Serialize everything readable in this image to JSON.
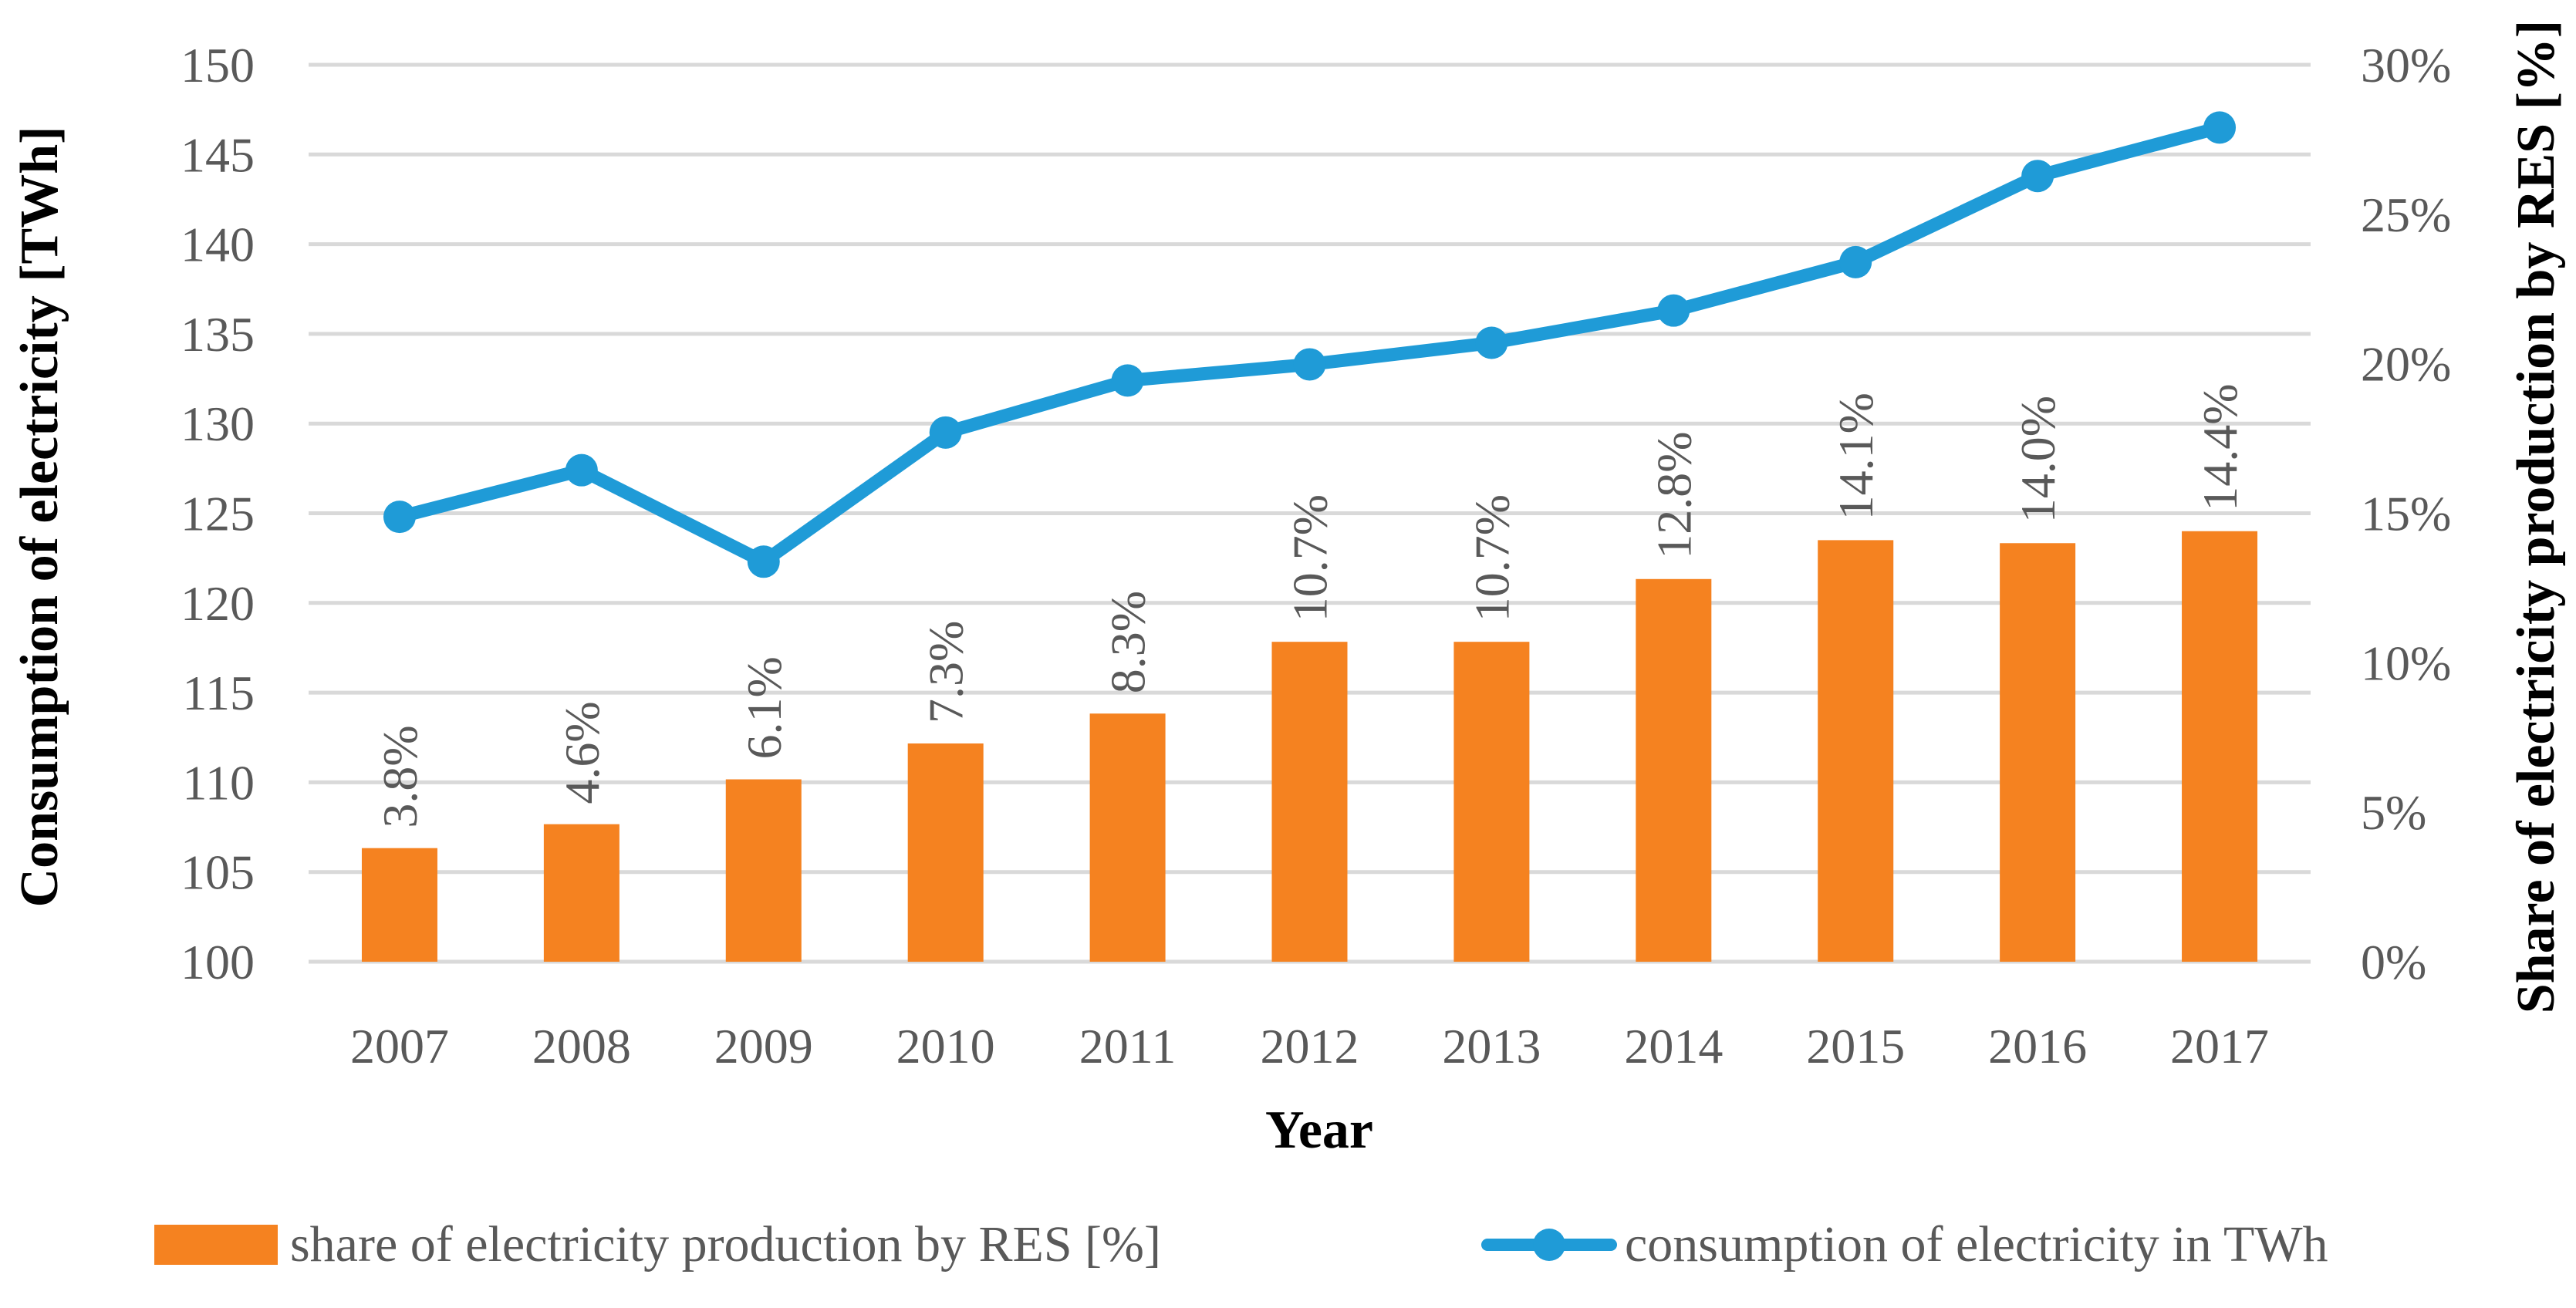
{
  "chart_data": {
    "type": "bar+line",
    "categories": [
      "2007",
      "2008",
      "2009",
      "2010",
      "2011",
      "2012",
      "2013",
      "2014",
      "2015",
      "2016",
      "2017"
    ],
    "series": [
      {
        "name": "share of electricity production by RES [%]",
        "type": "bar",
        "axis": "right",
        "values": [
          3.8,
          4.6,
          6.1,
          7.3,
          8.3,
          10.7,
          10.7,
          12.8,
          14.1,
          14.0,
          14.4
        ],
        "labels": [
          "3.8%",
          "4.6%",
          "6.1%",
          "7.3%",
          "8.3%",
          "10.7%",
          "10.7%",
          "12.8%",
          "14.1%",
          "14.0%",
          "14.4%"
        ],
        "color": "#F58220"
      },
      {
        "name": "consumption of electricity in TWh",
        "type": "line",
        "axis": "left",
        "values": [
          124.8,
          127.4,
          122.3,
          129.5,
          132.4,
          133.3,
          134.5,
          136.3,
          139.0,
          143.8,
          146.5
        ],
        "color": "#1F9BD7"
      }
    ],
    "xlabel": "Year",
    "ylabel": "Consumption of electricity [TWh]",
    "y2label": "Share of electricity production by RES [%]",
    "ylim": [
      100,
      150
    ],
    "y2lim": [
      0,
      30
    ],
    "yticks": [
      "100",
      "105",
      "110",
      "115",
      "120",
      "125",
      "130",
      "135",
      "140",
      "145",
      "150"
    ],
    "y2ticks": [
      "0%",
      "5%",
      "10%",
      "15%",
      "20%",
      "25%",
      "30%"
    ],
    "grid": true,
    "legend": "bottom",
    "gridColor": "#D9D9D9"
  }
}
